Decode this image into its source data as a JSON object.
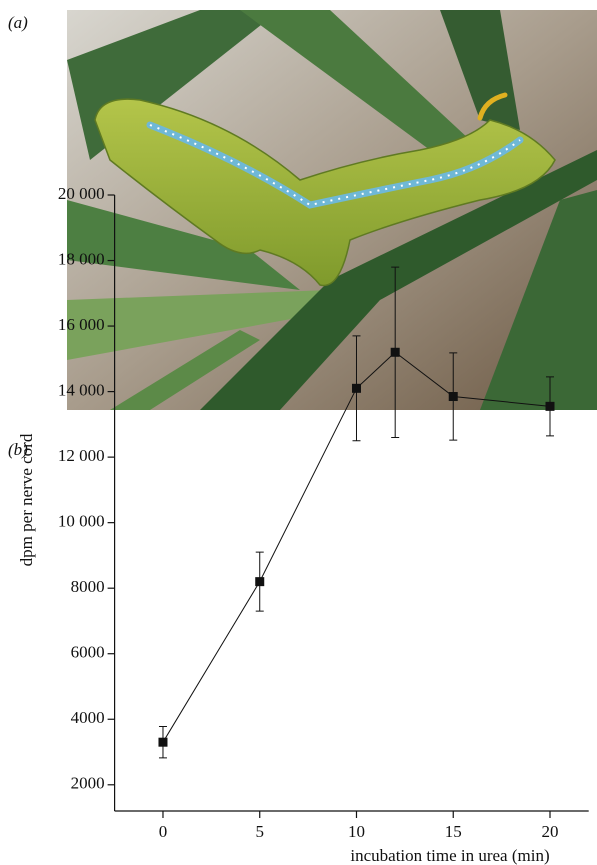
{
  "panels": {
    "a": "(a)",
    "b": "(b)"
  },
  "chart_data": {
    "type": "line",
    "xlabel": "incubation time in urea (min)",
    "ylabel": "dpm per nerve cord",
    "x": [
      0,
      5,
      10,
      12,
      15,
      20
    ],
    "values": [
      3300,
      8200,
      14100,
      15200,
      13850,
      13550
    ],
    "errors": [
      480,
      900,
      1600,
      2600,
      1330,
      900
    ],
    "color": "#111111",
    "xlim": [
      -2.5,
      22
    ],
    "ylim": [
      1200,
      20000
    ],
    "xticks": [
      0,
      5,
      10,
      15,
      20
    ],
    "yticks": [
      2000,
      4000,
      6000,
      8000,
      {
        "value": 10000,
        "label": "10 000"
      },
      {
        "value": 12000,
        "label": "12 000"
      },
      {
        "value": 14000,
        "label": "14 000"
      },
      {
        "value": 16000,
        "label": "16 000"
      },
      {
        "value": 18000,
        "label": "18 000"
      },
      {
        "value": 20000,
        "label": "20 000"
      }
    ]
  }
}
